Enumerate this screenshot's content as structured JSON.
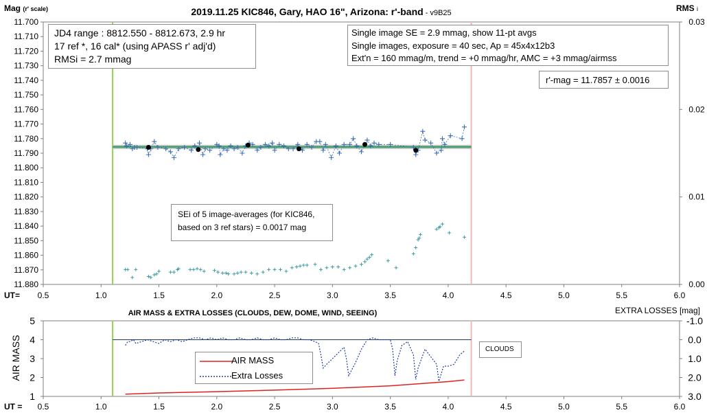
{
  "chart_data": [
    {
      "type": "scatter",
      "title": "2019.11.25 KIC846, Gary, HAO 16\", Arizona: r'-band",
      "title_suffix": " - v9B25",
      "ylabel": "Mag",
      "ylabel_suffix": "(r' scale)",
      "y2label": "RMS",
      "y2label_suffix": "i",
      "xlabel": "UT=",
      "xlim": [
        0.5,
        6.0
      ],
      "ylim": [
        11.7,
        11.88
      ],
      "y_reversed": true,
      "y2lim": [
        0.0,
        0.03
      ],
      "x_ticks": [
        "0.5",
        "1.0",
        "1.5",
        "2.0",
        "2.5",
        "3.0",
        "3.5",
        "4.0",
        "4.5",
        "5.0",
        "5.5",
        "6.0"
      ],
      "y_ticks": [
        "11.700",
        "11.710",
        "11.720",
        "11.730",
        "11.740",
        "11.750",
        "11.760",
        "11.770",
        "11.780",
        "11.790",
        "11.800",
        "11.810",
        "11.820",
        "11.830",
        "11.840",
        "11.850",
        "11.860",
        "11.870",
        "11.880"
      ],
      "y2_ticks": [
        "0.03",
        "0.02",
        "0.01",
        "0.00"
      ],
      "grid": false,
      "vlines": [
        {
          "x": 1.1,
          "color": "#92d050"
        },
        {
          "x": 4.2,
          "color": "#f4b6b6"
        }
      ],
      "fit_line": {
        "x": [
          1.1,
          4.2
        ],
        "y": 11.7857,
        "color": "#1f9e5a",
        "band_color": "#b5b5b5"
      },
      "colors": {
        "individual": "#3a6fb0",
        "averages": "#000000",
        "rms": "#3d9ca3"
      },
      "series": [
        {
          "name": "",
          "kind": "individual",
          "x": [
            1.21,
            1.22,
            1.25,
            1.27,
            1.29,
            1.31,
            1.4,
            1.41,
            1.43,
            1.46,
            1.49,
            1.56,
            1.6,
            1.63,
            1.67,
            1.72,
            1.78,
            1.81,
            1.84,
            1.85,
            1.88,
            1.9,
            1.94,
            2.0,
            2.02,
            2.03,
            2.06,
            2.09,
            2.12,
            2.15,
            2.18,
            2.22,
            2.25,
            2.28,
            2.31,
            2.35,
            2.38,
            2.42,
            2.45,
            2.48,
            2.5,
            2.54,
            2.58,
            2.62,
            2.66,
            2.7,
            2.74,
            2.78,
            2.82,
            2.86,
            2.89,
            2.92,
            2.94,
            2.99,
            3.03,
            3.06,
            3.1,
            3.15,
            3.18,
            3.21,
            3.25,
            3.3,
            3.33,
            3.36,
            3.4,
            3.5,
            3.7,
            3.72,
            3.74,
            3.78,
            3.8,
            3.85,
            3.9,
            3.94,
            3.95,
            3.97,
            4.02,
            4.12,
            4.14
          ],
          "y": [
            11.783,
            11.785,
            11.784,
            11.787,
            11.786,
            11.786,
            11.787,
            11.791,
            11.787,
            11.782,
            11.786,
            11.787,
            11.789,
            11.793,
            11.787,
            11.786,
            11.788,
            11.785,
            11.787,
            11.783,
            11.791,
            11.787,
            11.788,
            11.784,
            11.785,
            11.791,
            11.787,
            11.788,
            11.785,
            11.787,
            11.786,
            11.79,
            11.785,
            11.783,
            11.784,
            11.788,
            11.786,
            11.784,
            11.785,
            11.783,
            11.788,
            11.784,
            11.785,
            11.787,
            11.787,
            11.784,
            11.788,
            11.784,
            11.786,
            11.782,
            11.782,
            11.788,
            11.784,
            11.793,
            11.785,
            11.79,
            11.784,
            11.784,
            11.78,
            11.785,
            11.789,
            11.781,
            11.785,
            11.783,
            11.784,
            11.784,
            11.786,
            11.791,
            11.788,
            11.775,
            11.781,
            11.783,
            11.79,
            11.788,
            11.78,
            11.784,
            11.778,
            11.78,
            11.772
          ]
        },
        {
          "name": "",
          "kind": "averages",
          "x": [
            1.41,
            1.84,
            2.27,
            2.71,
            3.28,
            3.72
          ],
          "y": [
            11.786,
            11.7875,
            11.7845,
            11.787,
            11.784,
            11.788
          ]
        },
        {
          "name": "",
          "kind": "rms",
          "x": [
            1.21,
            1.23,
            1.27,
            1.3,
            1.41,
            1.43,
            1.46,
            1.48,
            1.5,
            1.6,
            1.63,
            1.66,
            1.67,
            1.77,
            1.8,
            1.83,
            1.86,
            1.89,
            1.98,
            2.01,
            2.05,
            2.08,
            2.1,
            2.15,
            2.18,
            2.21,
            2.25,
            2.3,
            2.35,
            2.4,
            2.45,
            2.5,
            2.55,
            2.6,
            2.65,
            2.69,
            2.72,
            2.75,
            2.78,
            2.85,
            2.9,
            2.95,
            3.0,
            3.05,
            3.1,
            3.15,
            3.2,
            3.25,
            3.28,
            3.3,
            3.32,
            3.34,
            3.48,
            3.55,
            3.7,
            3.72,
            3.74,
            3.75,
            3.76,
            3.9,
            3.92,
            3.93,
            3.95,
            4.01,
            4.14
          ],
          "y": [
            0.0017,
            0.0017,
            0.0008,
            0.0017,
            0.0009,
            0.0008,
            0.0011,
            0.0012,
            0.0015,
            0.0014,
            0.0014,
            0.0017,
            0.0018,
            0.0017,
            0.0017,
            0.0018,
            0.0017,
            0.0015,
            0.0016,
            0.0014,
            0.0013,
            0.0013,
            0.0012,
            0.0012,
            0.0013,
            0.0014,
            0.0014,
            0.0013,
            0.0012,
            0.0014,
            0.0017,
            0.0017,
            0.0017,
            0.0015,
            0.0019,
            0.002,
            0.0021,
            0.0022,
            0.0022,
            0.0023,
            0.0017,
            0.0019,
            0.002,
            0.002,
            0.0017,
            0.0019,
            0.0021,
            0.0023,
            0.0026,
            0.0029,
            0.0031,
            0.0034,
            0.0027,
            0.0019,
            0.0035,
            0.0042,
            0.0051,
            0.0053,
            0.0057,
            0.0063,
            0.0065,
            0.0066,
            0.0069,
            0.0059,
            0.0054
          ]
        }
      ],
      "annotations": {
        "info_box": [
          "JD4 range : 8812.550 - 8812.673,  2.9  hr",
          "17 ref *, 16 cal* (using APASS r' adj'd)",
          "RMSi = 2.7 mmag"
        ],
        "settings_box": [
          "Single image SE = 2.9 mmag, show  11-pt avgs",
          "Single images, exposure = 40 sec, Ap = 45x4x12b3",
          "Ext'n = 160 mmag/m, trend =  +0 mmag/hr, AMC = +3 mmag/airmss"
        ],
        "mag_box": "r'-mag = 11.7857 ± 0.0016",
        "sei_box": [
          "SEi of 5 image-averages (for KIC846,",
          "based on 3 ref stars) = 0.0017 mag"
        ]
      }
    },
    {
      "type": "line",
      "title": "AIR MASS & EXTRA LOSSES (CLOUDS, DEW, DOME, WIND, SEEING)",
      "ylabel": "AIR MASS",
      "y2label": "EXTRA LOSSES [mag]",
      "xlabel": "UT =",
      "xlim": [
        0.5,
        6.0
      ],
      "ylim": [
        1,
        5
      ],
      "y2lim": [
        -1.0,
        3.0
      ],
      "y2_reversed": true,
      "x_ticks": [
        "0.5",
        "1.0",
        "1.5",
        "2.0",
        "2.5",
        "3.0",
        "3.5",
        "4.0",
        "4.5",
        "5.0",
        "5.5",
        "6.0"
      ],
      "y_ticks": [
        "1",
        "2",
        "3",
        "4",
        "5"
      ],
      "y2_ticks": [
        "-1.0",
        "0.0",
        "1.0",
        "2.0",
        "3.0"
      ],
      "grid": false,
      "vlines": [
        {
          "x": 1.1,
          "color": "#92d050"
        },
        {
          "x": 4.2,
          "color": "#f4b6b6"
        }
      ],
      "zero_line": {
        "y2": 0.0,
        "x": [
          1.1,
          4.2
        ],
        "color": "#1f3864"
      },
      "clouds_label": "CLOUDS",
      "colors": {
        "air_mass": "#e02020",
        "extra_losses": "#1f3aa8"
      },
      "series": [
        {
          "name": "AIR MASS",
          "axis": "left",
          "x": [
            1.21,
            1.5,
            2.0,
            2.5,
            3.0,
            3.5,
            4.0,
            4.14
          ],
          "y": [
            1.12,
            1.18,
            1.25,
            1.33,
            1.43,
            1.56,
            1.78,
            1.87
          ]
        },
        {
          "name": "Extra Losses",
          "axis": "right",
          "x": [
            1.21,
            1.23,
            1.25,
            1.28,
            1.3,
            1.35,
            1.4,
            1.45,
            1.5,
            1.55,
            1.6,
            1.65,
            1.7,
            1.75,
            1.8,
            1.85,
            1.9,
            1.95,
            2.0,
            2.05,
            2.1,
            2.15,
            2.2,
            2.25,
            2.3,
            2.35,
            2.4,
            2.45,
            2.5,
            2.55,
            2.6,
            2.65,
            2.7,
            2.75,
            2.8,
            2.85,
            2.88,
            2.9,
            2.92,
            2.95,
            3.0,
            3.05,
            3.1,
            3.12,
            3.14,
            3.2,
            3.25,
            3.3,
            3.35,
            3.4,
            3.45,
            3.5,
            3.52,
            3.54,
            3.56,
            3.6,
            3.65,
            3.7,
            3.72,
            3.74,
            3.8,
            3.85,
            3.9,
            3.92,
            3.94,
            3.96,
            4.0,
            4.05,
            4.1,
            4.14
          ],
          "y": [
            0.3,
            0.1,
            0.1,
            0.0,
            0.2,
            0.1,
            0.0,
            0.1,
            0.2,
            0.0,
            0.1,
            0.0,
            0.1,
            0.0,
            -0.1,
            -0.1,
            0.0,
            -0.1,
            0.0,
            -0.1,
            0.0,
            0.0,
            -0.1,
            0.0,
            0.0,
            -0.1,
            0.0,
            0.0,
            -0.1,
            0.0,
            0.0,
            -0.1,
            -0.1,
            0.0,
            0.0,
            0.1,
            0.2,
            0.8,
            1.5,
            1.3,
            1.0,
            0.7,
            0.4,
            1.0,
            1.9,
            1.2,
            0.5,
            0.0,
            -0.1,
            0.0,
            0.0,
            0.0,
            0.5,
            1.9,
            1.1,
            0.3,
            0.1,
            0.8,
            2.1,
            1.5,
            0.5,
            0.9,
            1.3,
            2.2,
            1.8,
            1.4,
            1.4,
            1.3,
            0.8,
            0.6
          ]
        }
      ]
    }
  ]
}
